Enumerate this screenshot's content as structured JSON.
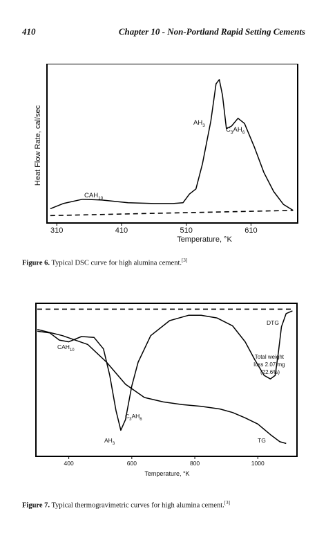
{
  "header": {
    "page_number": "410",
    "chapter_title": "Chapter 10 - Non-Portland Rapid Setting Cements"
  },
  "figure6": {
    "caption_label": "Figure 6.",
    "caption_text": " Typical DSC curve for high alumina cement.",
    "caption_ref": "[3]",
    "chart_data": {
      "type": "line",
      "ylabel": "Heat Flow Rate, cal/sec",
      "xlabel": "Temperature, °K",
      "x_ticks": [
        "310",
        "410",
        "510",
        "610"
      ],
      "annotations": [
        {
          "base": "CAH",
          "sub": "10"
        },
        {
          "base": "AH",
          "sub": "3"
        },
        {
          "base": "C",
          "sub1": "3",
          "mid": "AH",
          "sub2": "6"
        }
      ],
      "series": [
        {
          "style": "solid",
          "x": [
            300,
            320,
            350,
            380,
            420,
            460,
            490,
            505,
            515,
            525,
            535,
            548,
            556,
            561,
            566,
            572,
            580,
            590,
            600,
            615,
            630,
            645,
            660,
            675
          ],
          "y": [
            0.3,
            0.9,
            1.4,
            1.3,
            1.0,
            0.9,
            0.9,
            1.0,
            2.0,
            2.6,
            5.5,
            10.5,
            14.8,
            15.3,
            13.5,
            9.6,
            9.9,
            10.8,
            10.2,
            7.5,
            4.5,
            2.3,
            0.8,
            0.1
          ]
        },
        {
          "style": "dashed",
          "x": [
            300,
            675
          ],
          "y": [
            -0.5,
            0.1
          ]
        }
      ],
      "xlim": [
        297,
        680
      ],
      "ylim": [
        -1.2,
        16.5
      ],
      "grid": false
    }
  },
  "figure7": {
    "caption_label": "Figure 7.",
    "caption_text": " Typical thermogravimetric curves for high alumina cement.",
    "caption_ref": "[3]",
    "chart_data": {
      "type": "line",
      "xlabel": "Temperature, °K",
      "x_ticks": [
        "400",
        "600",
        "800",
        "1000"
      ],
      "annotations": [
        {
          "base": "CAH",
          "sub": "10"
        },
        {
          "base": "AH",
          "sub": "3"
        },
        {
          "base": "C",
          "sub1": "3",
          "mid": "AH",
          "sub2": "6"
        },
        {
          "text": "DTG"
        },
        {
          "text": "TG"
        },
        {
          "lines": [
            "Total weight",
            "loss 2.07 mg",
            "(22.6%)"
          ]
        }
      ],
      "series": [
        {
          "name": "DTG",
          "style": "solid",
          "x": [
            300,
            340,
            370,
            400,
            440,
            480,
            510,
            530,
            550,
            565,
            580,
            600,
            620,
            660,
            720,
            780,
            820,
            870,
            920,
            960,
            990,
            1020,
            1040,
            1055,
            1065,
            1075,
            1090,
            1110
          ],
          "y": [
            70,
            68,
            60,
            58,
            64,
            63,
            50,
            20,
            -20,
            -42,
            -30,
            8,
            35,
            65,
            82,
            88,
            88,
            85,
            76,
            58,
            38,
            20,
            16,
            20,
            45,
            75,
            90,
            93
          ]
        },
        {
          "name": "TG",
          "style": "solid",
          "x": [
            300,
            380,
            460,
            520,
            580,
            640,
            700,
            760,
            820,
            880,
            920,
            960,
            1000,
            1040,
            1070,
            1090
          ],
          "y": [
            72,
            65,
            55,
            35,
            10,
            -5,
            -10,
            -13,
            -15,
            -18,
            -22,
            -28,
            -35,
            -47,
            -55,
            -57
          ]
        },
        {
          "style": "dashed",
          "x": [
            300,
            1110
          ],
          "y": [
            95,
            95
          ]
        }
      ],
      "xlim": [
        300,
        1120
      ],
      "ylim": [
        -70,
        100
      ],
      "grid": false
    }
  }
}
